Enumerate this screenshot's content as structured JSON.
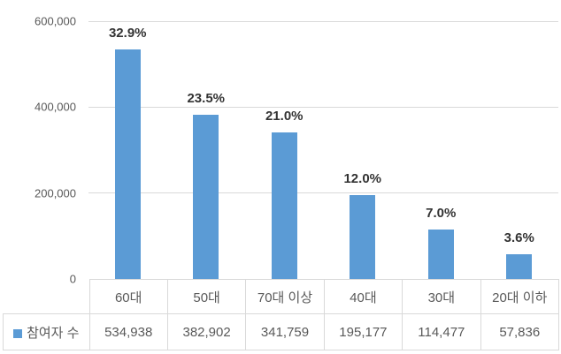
{
  "chart_data": {
    "type": "bar",
    "title": "",
    "xlabel": "",
    "ylabel": "",
    "categories": [
      "60대",
      "50대",
      "70대 이상",
      "40대",
      "30대",
      "20대 이하"
    ],
    "series": [
      {
        "name": "참여자 수",
        "values": [
          534938,
          382902,
          341759,
          195177,
          114477,
          57836
        ],
        "value_labels": [
          "534,938",
          "382,902",
          "341,759",
          "195,177",
          "114,477",
          "57,836"
        ],
        "percent_labels": [
          "32.9%",
          "23.5%",
          "21.0%",
          "12.0%",
          "7.0%",
          "3.6%"
        ]
      }
    ],
    "ylim": [
      0,
      600000
    ],
    "yticks": [
      0,
      200000,
      400000,
      600000
    ],
    "ytick_labels": [
      "0",
      "200,000",
      "400,000",
      "600,000"
    ],
    "grid": true,
    "legend_position": "table-row-left",
    "bar_color": "#5B9BD5"
  },
  "colors": {
    "bar": "#5B9BD5",
    "gridline": "#D9D9D9",
    "table_border": "#D9D9D9",
    "axis_text": "#595959",
    "table_text": "#595959",
    "data_label_text": "#333333"
  }
}
